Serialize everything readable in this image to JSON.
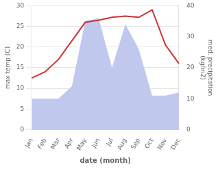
{
  "chart_data": {
    "type": "line",
    "categories": [
      "Jan",
      "Feb",
      "Mar",
      "Apr",
      "May",
      "Jun",
      "Jul",
      "Aug",
      "Sep",
      "Oct",
      "Nov",
      "Dec"
    ],
    "series": [
      {
        "type": "line",
        "color": "#cc3333",
        "values": [
          12.5,
          14.0,
          17.0,
          21.5,
          26.0,
          26.5,
          27.2,
          27.5,
          27.2,
          29.0,
          20.5,
          16.0
        ]
      },
      {
        "type": "area",
        "color": "#c0c8ee",
        "axis": "y2",
        "values": [
          10,
          10,
          10,
          14,
          35,
          36,
          20,
          34,
          26,
          11,
          11,
          12
        ]
      }
    ],
    "xlabel": "date (month)",
    "ylabel": "max temp (C)",
    "y2label": "med. precipitation\n(kg/m2)",
    "ylim": [
      0,
      30
    ],
    "yticks": [
      0,
      5,
      10,
      15,
      20,
      25,
      30
    ],
    "y2lim": [
      0,
      40
    ],
    "y2ticks": [
      0,
      10,
      20,
      30,
      40
    ],
    "grid": true
  }
}
